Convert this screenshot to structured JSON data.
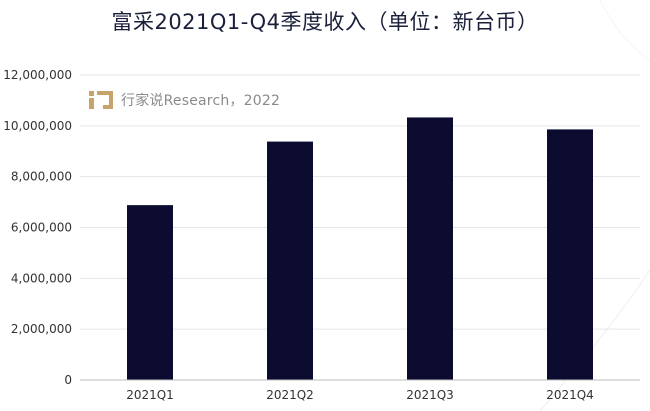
{
  "title": "富采2021Q1-Q4季度收入（单位：新台币）",
  "watermark": {
    "text": "行家说Research，2022"
  },
  "colors": {
    "bar": "#0a0b2e",
    "grid": "#e6e6e6",
    "axis": "#bdbdbd",
    "text": "#333333",
    "title": "#1a1f3a"
  },
  "chart_data": {
    "type": "bar",
    "title": "富采2021Q1-Q4季度收入（单位：新台币）",
    "xlabel": "",
    "ylabel": "",
    "categories": [
      "2021Q1",
      "2021Q2",
      "2021Q3",
      "2021Q4"
    ],
    "values": [
      6880000,
      9380000,
      10330000,
      9860000
    ],
    "ylim": [
      0,
      12000000
    ],
    "yticks": [
      0,
      2000000,
      4000000,
      6000000,
      8000000,
      10000000,
      12000000
    ],
    "ytick_labels": [
      "0",
      "2,000,000",
      "4,000,000",
      "6,000,000",
      "8,000,000",
      "10,000,000",
      "12,000,000"
    ],
    "grid": true,
    "legend": "none"
  }
}
